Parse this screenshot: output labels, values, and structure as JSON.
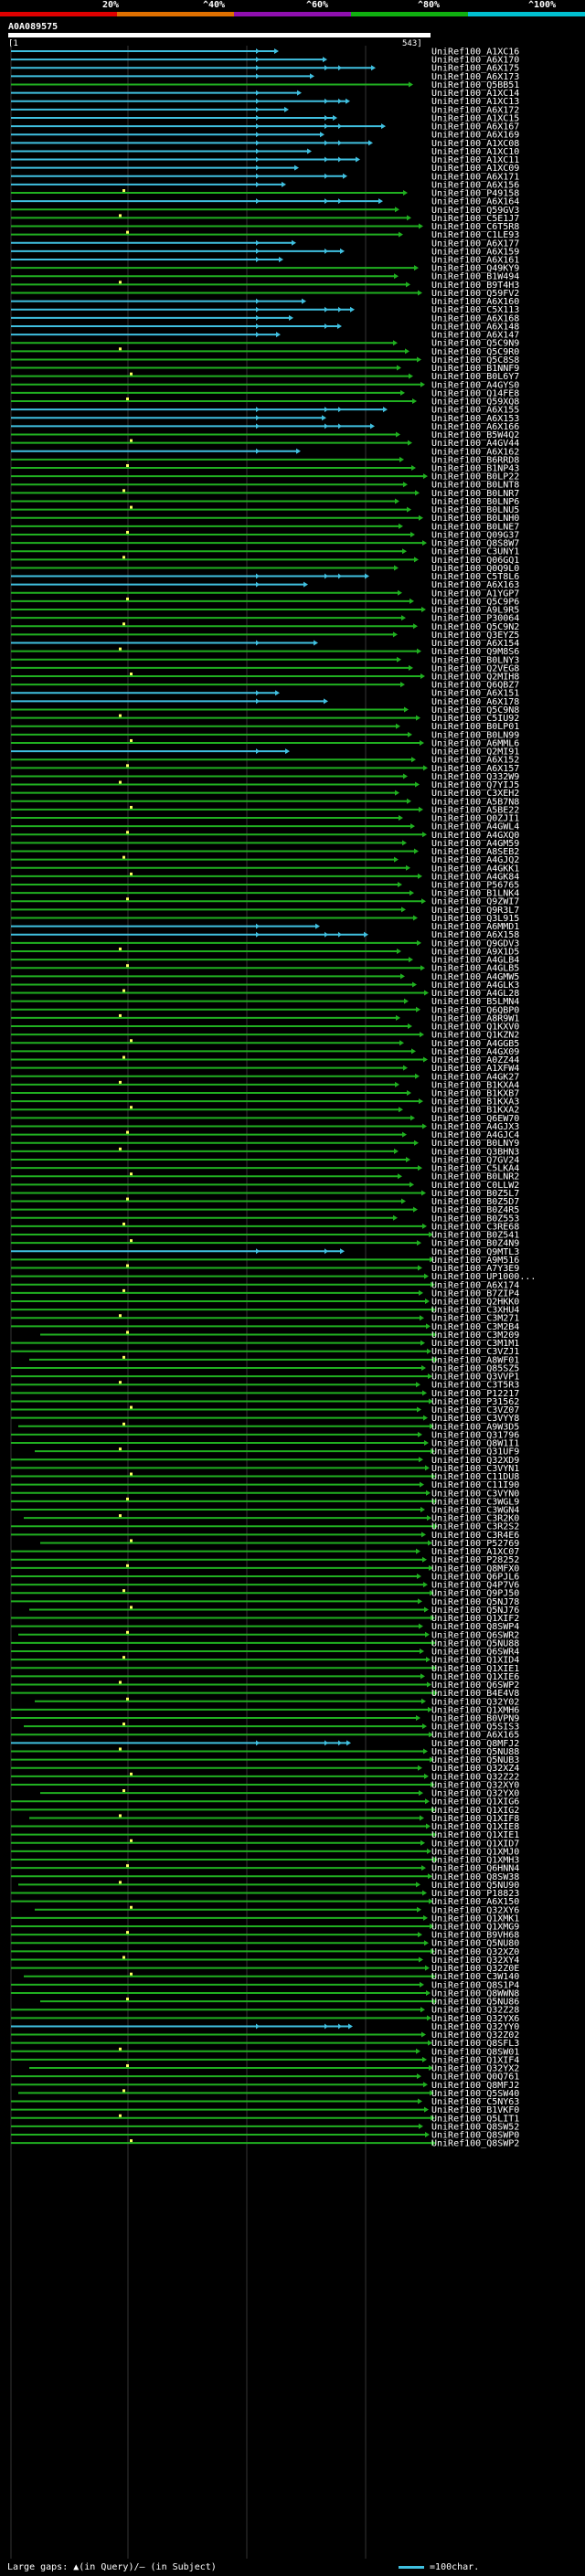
{
  "header": {
    "percent_labels": [
      "20%",
      "^40%",
      "^60%",
      "^80%",
      "^100%"
    ],
    "percent_colors": [
      "#e00000",
      "#e07000",
      "#9010b0",
      "#10b010",
      "#00c0d0"
    ],
    "query_name": "A0A089575",
    "ruler_start": "[1",
    "ruler_end": "543]"
  },
  "footer": {
    "legend_text": "Large gaps: ▲(in Query)/– (in Subject)",
    "scale_text": "=100char."
  },
  "colors": {
    "high_identity": "#40c0e0",
    "mid_identity": "#20b020",
    "gap_marker": "#ffff60"
  },
  "hits": [
    "UniRef100_A1XC16",
    "UniRef100_A6X170",
    "UniRef100_A6X175",
    "UniRef100_A6X173",
    "UniRef100_Q5BB51",
    "UniRef100_A1XC14",
    "UniRef100_A1XC13",
    "UniRef100_A6X172",
    "UniRef100_A1XC15",
    "UniRef100_A6X167",
    "UniRef100_A6X169",
    "UniRef100_A1XC08",
    "UniRef100_A1XC10",
    "UniRef100_A1XC11",
    "UniRef100_A1XC09",
    "UniRef100_A6X171",
    "UniRef100_A6X156",
    "UniRef100_P49158",
    "UniRef100_A6X164",
    "UniRef100_Q59GV3",
    "UniRef100_C5E1J7",
    "UniRef100_C6T5R8",
    "UniRef100_C1LE93",
    "UniRef100_A6X177",
    "UniRef100_A6X159",
    "UniRef100_A6X161",
    "UniRef100_Q49KY9",
    "UniRef100_B1W494",
    "UniRef100_B9T4H3",
    "UniRef100_Q59FV2",
    "UniRef100_A6X160",
    "UniRef100_C5X113",
    "UniRef100_A6X168",
    "UniRef100_A6X148",
    "UniRef100_A6X147",
    "UniRef100_Q5C9N9",
    "UniRef100_Q5C9R0",
    "UniRef100_Q5C8S8",
    "UniRef100_B1NNF9",
    "UniRef100_B0L6Y7",
    "UniRef100_A4GYS0",
    "UniRef100_Q14FE8",
    "UniRef100_Q59XQ8",
    "UniRef100_A6X155",
    "UniRef100_A6X153",
    "UniRef100_A6X166",
    "UniRef100_B5W4Q2",
    "UniRef100_A4GV44",
    "UniRef100_A6X162",
    "UniRef100_B6RRD8",
    "UniRef100_B1NP43",
    "UniRef100_B0LP22",
    "UniRef100_B0LNT8",
    "UniRef100_B0LNR7",
    "UniRef100_B0LNP6",
    "UniRef100_B0LNU5",
    "UniRef100_B0LNH0",
    "UniRef100_B0LNE7",
    "UniRef100_Q09G37",
    "UniRef100_Q8S8W7",
    "UniRef100_C3UNY1",
    "UniRef100_Q06GQ1",
    "UniRef100_Q0Q9L0",
    "UniRef100_C5T8L6",
    "UniRef100_A6X163",
    "UniRef100_A1YGP7",
    "UniRef100_Q5C9P6",
    "UniRef100_A9L9R5",
    "UniRef100_P30064",
    "UniRef100_Q5C9N2",
    "UniRef100_Q3EYZ5",
    "UniRef100_A6X154",
    "UniRef100_Q9M8S6",
    "UniRef100_B0LNY3",
    "UniRef100_Q2VEG8",
    "UniRef100_Q2MIH8",
    "UniRef100_Q6QBZ7",
    "UniRef100_A6X151",
    "UniRef100_A6X178",
    "UniRef100_Q5C9N8",
    "UniRef100_C5IU92",
    "UniRef100_B0LP01",
    "UniRef100_B0LN99",
    "UniRef100_A6MML6",
    "UniRef100_Q2MI91",
    "UniRef100_A6X152",
    "UniRef100_A6X157",
    "UniRef100_Q332W9",
    "UniRef100_Q7YIJ5",
    "UniRef100_C3XEH2",
    "UniRef100_A5B7N8",
    "UniRef100_A5BE22",
    "UniRef100_Q0ZJI1",
    "UniRef100_A4GWL4",
    "UniRef100_A4GXQ0",
    "UniRef100_A4GM59",
    "UniRef100_A8SEB2",
    "UniRef100_A4GJQ2",
    "UniRef100_A4GKK1",
    "UniRef100_A4GK84",
    "UniRef100_P56765",
    "UniRef100_B1LNK4",
    "UniRef100_Q9ZWI7",
    "UniRef100_Q9R3L7",
    "UniRef100_Q3L915",
    "UniRef100_A6MMD1",
    "UniRef100_A6X158",
    "UniRef100_Q9GDV3",
    "UniRef100_A9X1D5",
    "UniRef100_A4GLB4",
    "UniRef100_A4GLB5",
    "UniRef100_A4GMW5",
    "UniRef100_A4GLK3",
    "UniRef100_A4GL28",
    "UniRef100_B5LMN4",
    "UniRef100_Q6QBP0",
    "UniRef100_A8R9W1",
    "UniRef100_Q1KXV0",
    "UniRef100_Q1KZN2",
    "UniRef100_A4GGB5",
    "UniRef100_A4GX09",
    "UniRef100_A0ZZ44",
    "UniRef100_A1XFW4",
    "UniRef100_A4GK27",
    "UniRef100_B1KXA4",
    "UniRef100_B1KXB7",
    "UniRef100_B1KXA3",
    "UniRef100_B1KXA2",
    "UniRef100_Q6EW70",
    "UniRef100_A4GJX3",
    "UniRef100_A4GJC4",
    "UniRef100_B0LNY9",
    "UniRef100_Q3BHN3",
    "UniRef100_Q7GV24",
    "UniRef100_C5LKA4",
    "UniRef100_B0LNR2",
    "UniRef100_C0LLW2",
    "UniRef100_B0Z5L7",
    "UniRef100_B0Z5D7",
    "UniRef100_B0Z4R5",
    "UniRef100_B0Z553",
    "UniRef100_C3RE68",
    "UniRef100_B0Z541",
    "UniRef100_B0Z4N9",
    "UniRef100_Q9MTL3",
    "UniRef100_A9M516",
    "UniRef100_A7Y3E9",
    "UniRef100_UP1000...",
    "UniRef100_A6X174",
    "UniRef100_B7ZIP4",
    "UniRef100_Q2HKK0",
    "UniRef100_C3XHU4",
    "UniRef100_C3M271",
    "UniRef100_C3M2B4",
    "UniRef100_C3M209",
    "UniRef100_C3M1M1",
    "UniRef100_C3VZJ1",
    "UniRef100_A8WF01",
    "UniRef100_Q85SZ5",
    "UniRef100_Q3VVP1",
    "UniRef100_C3T5R3",
    "UniRef100_P12217",
    "UniRef100_P31562",
    "UniRef100_C3VZ07",
    "UniRef100_C3VYY8",
    "UniRef100_A9W3D5",
    "UniRef100_Q31796",
    "UniRef100_Q8W1I1",
    "UniRef100_Q31UF9",
    "UniRef100_Q32XD9",
    "UniRef100_C3VYN1",
    "UniRef100_C11DU8",
    "UniRef100_C11I90",
    "UniRef100_C3VYN0",
    "UniRef100_C3WGL9",
    "UniRef100_C3WGN4",
    "UniRef100_C3R2K0",
    "UniRef100_C3R2S2",
    "UniRef100_C3R4E6",
    "UniRef100_P52769",
    "UniRef100_A1XC07",
    "UniRef100_P28252",
    "UniRef100_Q8MFX0",
    "UniRef100_Q6PJL6",
    "UniRef100_Q4P7V6",
    "UniRef100_Q9PJ50",
    "UniRef100_Q5NJ78",
    "UniRef100_Q5NJ76",
    "UniRef100_Q1XIF2",
    "UniRef100_Q8SWP4",
    "UniRef100_Q6SWR2",
    "UniRef100_Q5NU88",
    "UniRef100_Q6SWR4",
    "UniRef100_Q1XID4",
    "UniRef100_Q1XIE1",
    "UniRef100_Q1XIE6",
    "UniRef100_Q6SWP2",
    "UniRef100_B4E4V8",
    "UniRef100_Q32Y02",
    "UniRef100_Q1XMH6",
    "UniRef100_B0VPN9",
    "UniRef100_Q5SIS3",
    "UniRef100_A6X165",
    "UniRef100_Q8MFJ2",
    "UniRef100_Q5NU88",
    "UniRef100_Q5NUB3",
    "UniRef100_Q32XZ4",
    "UniRef100_Q32Z22",
    "UniRef100_Q32XY0",
    "UniRef100_Q32YX0",
    "UniRef100_Q1XIG6",
    "UniRef100_Q1XIG2",
    "UniRef100_Q1XIF8",
    "UniRef100_Q1XIE8",
    "UniRef100_Q1XIE1",
    "UniRef100_Q1XID7",
    "UniRef100_Q1XMJ0",
    "UniRef100_Q1XMH3",
    "UniRef100_Q6HNN4",
    "UniRef100_Q8SW38",
    "UniRef100_Q5NU90",
    "UniRef100_P18823",
    "UniRef100_A6X150",
    "UniRef100_Q32XY6",
    "UniRef100_Q1XMK1",
    "UniRef100_Q1XMG9",
    "UniRef100_B9VH68",
    "UniRef100_Q5NU80",
    "UniRef100_Q32XZ0",
    "UniRef100_Q32XY4",
    "UniRef100_Q32Z0E",
    "UniRef100_C3W140",
    "UniRef100_Q8S1P4",
    "UniRef100_Q8WWN8",
    "UniRef100_Q5NU86",
    "UniRef100_Q32Z28",
    "UniRef100_Q32YX6",
    "UniRef100_Q32YY0",
    "UniRef100_Q32Z02",
    "UniRef100_Q8SFL3",
    "UniRef100_Q8SW01",
    "UniRef100_Q1XIF4",
    "UniRef100_Q32YX2",
    "UniRef100_Q0Q761",
    "UniRef100_Q8MFJ2",
    "UniRef100_Q5SW40",
    "UniRef100_C5NY63",
    "UniRef100_B1VKF0",
    "UniRef100_Q5LIT1",
    "UniRef100_Q8SW52",
    "UniRef100_Q8SWP0",
    "UniRef100_Q8SWP2"
  ]
}
